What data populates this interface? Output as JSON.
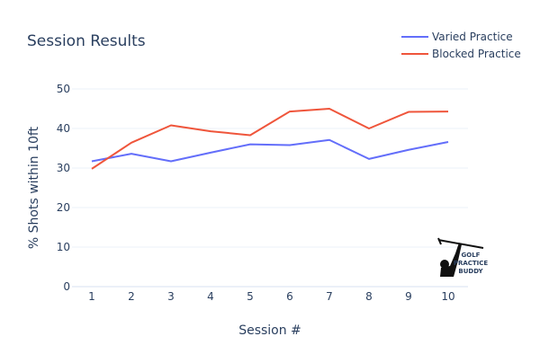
{
  "chart_data": {
    "type": "line",
    "title": "Session Results",
    "xlabel": "Session #",
    "ylabel": "% Shots within 10ft",
    "x": [
      1,
      2,
      3,
      4,
      5,
      6,
      7,
      8,
      9,
      10
    ],
    "xticks": [
      "1",
      "2",
      "3",
      "4",
      "5",
      "6",
      "7",
      "8",
      "9",
      "10"
    ],
    "yticks": [
      "0",
      "10",
      "20",
      "30",
      "40",
      "50"
    ],
    "ylim": [
      0,
      50
    ],
    "grid": true,
    "legend_position": "top-right",
    "series": [
      {
        "name": "Varied Practice",
        "color": "#636efa",
        "values": [
          31.7,
          33.6,
          31.7,
          33.9,
          36.0,
          35.8,
          37.1,
          32.3,
          34.6,
          36.6
        ]
      },
      {
        "name": "Blocked Practice",
        "color": "#ef553b",
        "values": [
          29.8,
          36.4,
          40.8,
          39.3,
          38.3,
          44.3,
          45.0,
          40.0,
          44.2,
          44.3
        ]
      }
    ]
  },
  "logo": {
    "text": "GOLF PRACTICE BUDDY"
  }
}
